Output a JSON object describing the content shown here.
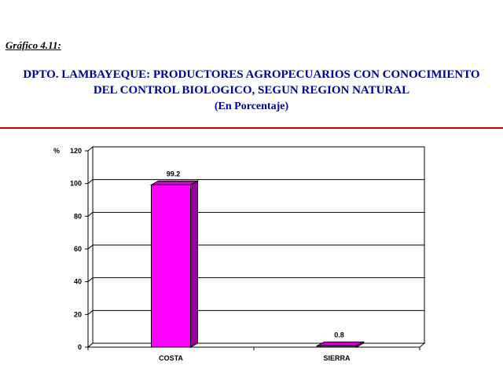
{
  "header": {
    "figure_label": "Gráfico  4.11:",
    "title_line1": "DPTO. LAMBAYEQUE: PRODUCTORES AGROPECUARIOS CON CONOCIMIENTO",
    "title_line2": "DEL CONTROL BIOLOGICO, SEGUN REGION NATURAL",
    "title_line3": "(En Porcentaje)"
  },
  "colors": {
    "title": "#000099",
    "rule": "#cc0000",
    "bar_front": "#ff00ff",
    "bar_top": "#cc00cc",
    "bar_side": "#990099"
  },
  "chart_data": {
    "type": "bar",
    "categories": [
      "COSTA",
      "SIERRA"
    ],
    "values": [
      99.2,
      0.8
    ],
    "data_labels": [
      "99.2",
      "0.8"
    ],
    "ylabel": "%",
    "ylim": [
      0,
      120
    ],
    "yticks": [
      "0",
      "20",
      "40",
      "60",
      "80",
      "100",
      "120"
    ],
    "grid": true
  }
}
